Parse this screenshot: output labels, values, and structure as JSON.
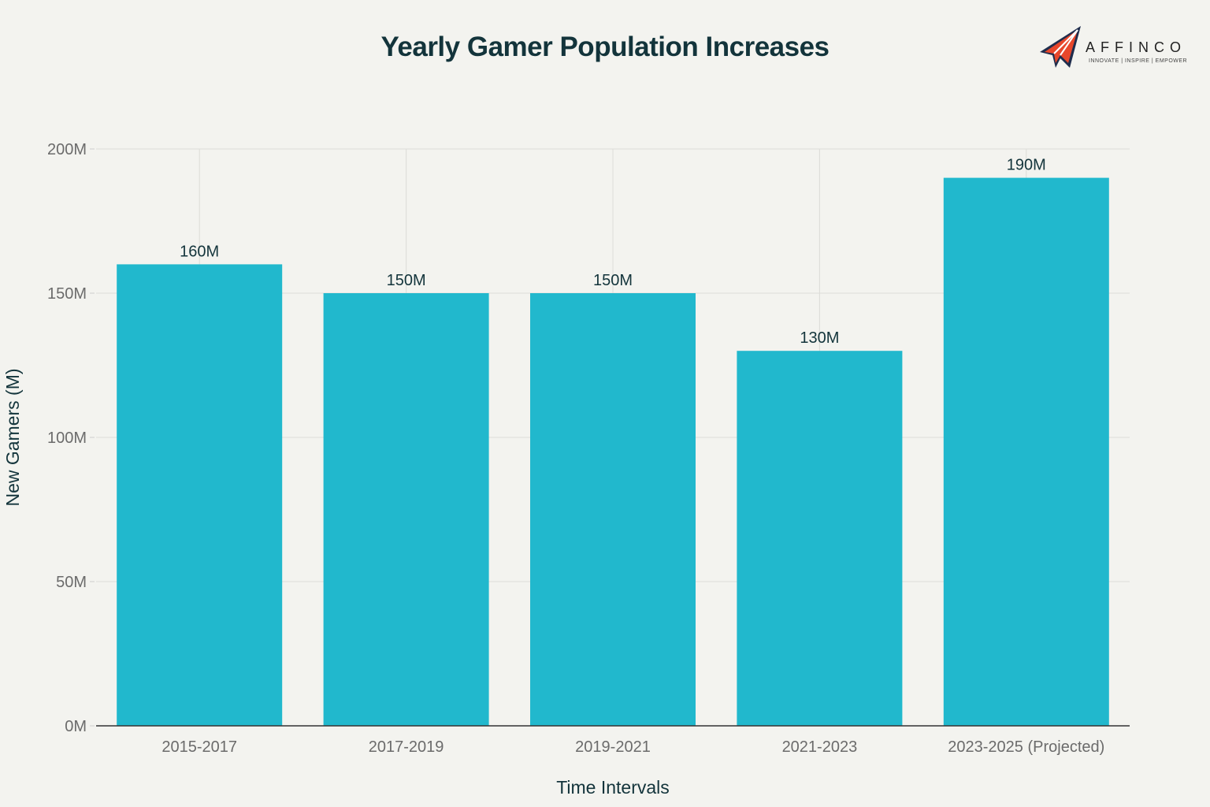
{
  "logo": {
    "name": "AFFINCO",
    "tagline": "INNOVATE | INSPIRE | EMPOWER"
  },
  "chart_data": {
    "type": "bar",
    "title": "Yearly Gamer Population Increases",
    "xlabel": "Time Intervals",
    "ylabel": "New Gamers (M)",
    "categories": [
      "2015-2017",
      "2017-2019",
      "2019-2021",
      "2021-2023",
      "2023-2025 (Projected)"
    ],
    "values": [
      160,
      150,
      150,
      130,
      190
    ],
    "data_labels": [
      "160M",
      "150M",
      "150M",
      "130M",
      "190M"
    ],
    "ylim": [
      0,
      200
    ],
    "yticks": [
      0,
      50,
      100,
      150,
      200
    ],
    "ytick_labels": [
      "0M",
      "50M",
      "100M",
      "150M",
      "200M"
    ],
    "grid": true,
    "bar_color": "#21b8cd"
  }
}
